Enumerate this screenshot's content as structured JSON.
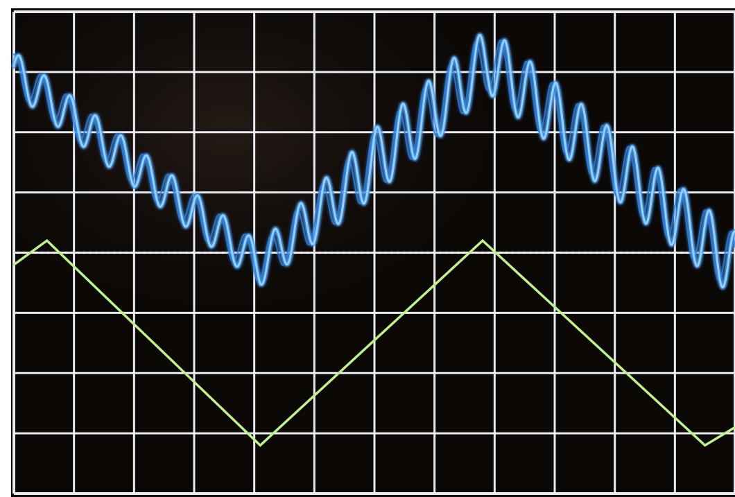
{
  "chart_data": {
    "type": "line",
    "title": "",
    "xlabel": "",
    "ylabel": "",
    "grid": true,
    "grid_divisions": {
      "x": 12,
      "y": 8
    },
    "xlim": [
      0,
      12
    ],
    "ylim": [
      -4,
      4
    ],
    "colors": {
      "screen": "#0b0806",
      "grid": "#e8ecf2",
      "center_dots": "#f2f2f2",
      "ch_blue": "#8fd2ff",
      "ch_blue_glow": "#2c7fe0",
      "ch_green": "#bff28a"
    },
    "series": [
      {
        "key": "ch_blue",
        "kind": "modulated-triangle",
        "trace_color": "#8fd2ff",
        "glow_color": "#2c7fe0",
        "envelope": [
          {
            "x": 0.0,
            "y": 3.0
          },
          {
            "x": 4.1,
            "y": -0.2
          },
          {
            "x": 7.9,
            "y": 3.2
          },
          {
            "x": 12.0,
            "y": -0.2
          }
        ],
        "ripple_amplitude": 0.34,
        "ripple_cycles_per_div": 2.35,
        "ripple_growth_after_x": 4.0,
        "ripple_amplitude_late": 0.55
      },
      {
        "key": "ch_green",
        "kind": "triangle",
        "trace_color": "#bff28a",
        "points": [
          {
            "x": 0.0,
            "y": -0.2
          },
          {
            "x": 0.55,
            "y": 0.2
          },
          {
            "x": 4.1,
            "y": -3.2
          },
          {
            "x": 7.8,
            "y": 0.2
          },
          {
            "x": 11.5,
            "y": -3.2
          },
          {
            "x": 12.0,
            "y": -2.9
          }
        ]
      }
    ]
  }
}
